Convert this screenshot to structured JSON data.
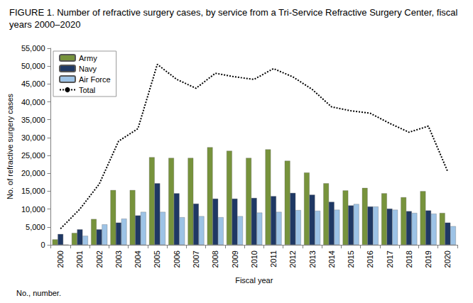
{
  "chart_data": {
    "type": "bar",
    "title": "FIGURE 1. Number of refractive surgery cases, by service from a Tri-Service Refractive Surgery Center, fiscal years 2000–2020",
    "x_label": "Fiscal year",
    "y_label": "No. of refractive surgery cases",
    "annotations": [
      "No., number."
    ],
    "categories": [
      "2000",
      "2001",
      "2002",
      "2003",
      "2004",
      "2005",
      "2006",
      "2007",
      "2008",
      "2009",
      "2010",
      "2011",
      "2012",
      "2013",
      "2014",
      "2015",
      "2016",
      "2017",
      "2018",
      "2019",
      "2020"
    ],
    "series": [
      {
        "name": "Army",
        "type": "bar",
        "color": "#77933c",
        "values": [
          1500,
          3300,
          7200,
          15300,
          15300,
          24500,
          24300,
          24300,
          27300,
          26300,
          24300,
          26700,
          23500,
          20200,
          17200,
          15200,
          15900,
          14400,
          13300,
          15000,
          8900
        ]
      },
      {
        "name": "Navy",
        "type": "bar",
        "color": "#1f3864",
        "values": [
          3000,
          4300,
          4300,
          6200,
          8200,
          17200,
          14400,
          11500,
          12900,
          12900,
          13100,
          13600,
          14500,
          14000,
          12000,
          11000,
          10700,
          10100,
          9400,
          9600,
          6200
        ]
      },
      {
        "name": "Air Force",
        "type": "bar",
        "color": "#9dc3e6",
        "values": [
          0,
          2500,
          5700,
          7300,
          9200,
          9200,
          7700,
          8000,
          7700,
          8000,
          9000,
          9200,
          9700,
          9500,
          9800,
          11400,
          10700,
          9800,
          8900,
          8700,
          5200
        ]
      },
      {
        "name": "Total",
        "type": "line",
        "color": "#000000",
        "line_style": "dotted",
        "marker": "none",
        "values": [
          4500,
          10000,
          17000,
          29000,
          32500,
          50500,
          46300,
          43800,
          48000,
          47000,
          46300,
          49300,
          47000,
          43500,
          38600,
          37500,
          36800,
          34000,
          31500,
          33200,
          20500
        ]
      }
    ],
    "ylim": [
      0,
      55000
    ],
    "yticks": [
      0,
      {
        "value": 5000,
        "label": "5,000"
      },
      {
        "value": 10000,
        "label": "10,000"
      },
      {
        "value": 15000,
        "label": "15,000"
      },
      {
        "value": 20000,
        "label": "20,000"
      },
      {
        "value": 25000,
        "label": "25,000"
      },
      {
        "value": 30000,
        "label": "30,000"
      },
      {
        "value": 35000,
        "label": "35,000"
      },
      {
        "value": 40000,
        "label": "40,000"
      },
      {
        "value": 45000,
        "label": "45,000"
      },
      {
        "value": 50000,
        "label": "50,000"
      },
      {
        "value": 55000,
        "label": "55,000"
      }
    ],
    "grid": false,
    "legend": "upper left"
  }
}
